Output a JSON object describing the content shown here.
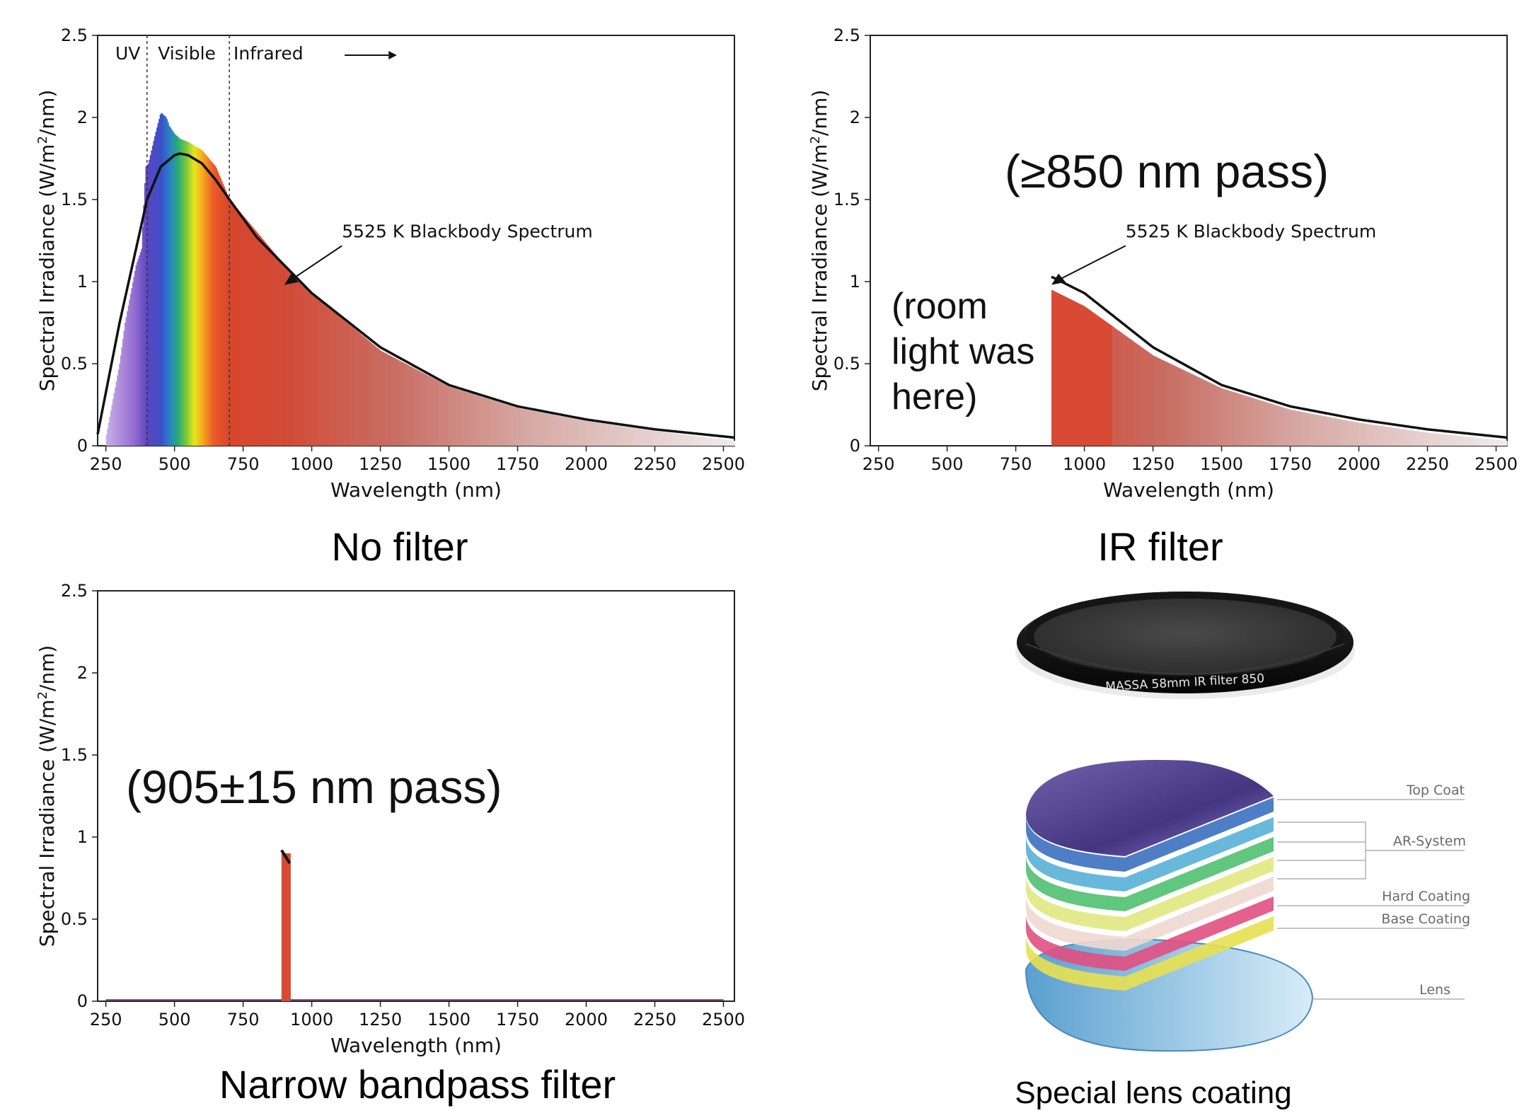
{
  "chart_data": [
    {
      "id": "no_filter",
      "type": "area",
      "xlabel": "Wavelength (nm)",
      "ylabel": "Spectral Irradiance (W/m2/nm)",
      "xlim": [
        220,
        2540
      ],
      "ylim": [
        0,
        2.5
      ],
      "xticks": [
        250,
        500,
        750,
        1000,
        1250,
        1500,
        1750,
        2000,
        2250,
        2500
      ],
      "yticks": [
        0,
        0.5,
        1,
        1.5,
        2,
        2.5
      ],
      "region_labels": [
        "UV",
        "Visible",
        "Infrared"
      ],
      "region_boundaries": [
        400,
        700
      ],
      "blackbody_label": "5525 K Blackbody Spectrum",
      "caption": "No filter",
      "series": [
        {
          "name": "5525 K Blackbody Spectrum",
          "x": [
            220,
            300,
            400,
            450,
            500,
            520,
            550,
            600,
            650,
            700,
            800,
            1000,
            1250,
            1500,
            1750,
            2000,
            2250,
            2540
          ],
          "y": [
            0.07,
            0.75,
            1.5,
            1.7,
            1.77,
            1.78,
            1.77,
            1.72,
            1.62,
            1.5,
            1.27,
            0.93,
            0.6,
            0.37,
            0.24,
            0.16,
            0.1,
            0.05
          ]
        },
        {
          "x": [
            250,
            300,
            320,
            360,
            380,
            395,
            405,
            430,
            450,
            470,
            480,
            500,
            520,
            550,
            600,
            650,
            700,
            750,
            800,
            900,
            1000,
            1250,
            1500,
            1750,
            2000,
            2250,
            2540
          ],
          "y": [
            0.05,
            0.5,
            0.75,
            1.1,
            1.2,
            1.7,
            1.72,
            1.9,
            2.03,
            2.0,
            1.95,
            1.9,
            1.87,
            1.85,
            1.8,
            1.7,
            1.5,
            1.4,
            1.3,
            1.1,
            0.93,
            0.58,
            0.36,
            0.23,
            0.15,
            0.09,
            0.03
          ]
        }
      ]
    },
    {
      "id": "ir_filter",
      "type": "area",
      "xlabel": "Wavelength (nm)",
      "ylabel": "Spectral Irradiance (W/m2/nm)",
      "xlim": [
        220,
        2540
      ],
      "ylim": [
        0,
        2.5
      ],
      "xticks": [
        250,
        500,
        750,
        1000,
        1250,
        1500,
        1750,
        2000,
        2250,
        2500
      ],
      "yticks": [
        0,
        0.5,
        1,
        1.5,
        2,
        2.5
      ],
      "annotation": "(≥850 nm pass)",
      "side_note": [
        "(room",
        "light was",
        "here)"
      ],
      "blackbody_label": "5525 K Blackbody Spectrum",
      "caption": "IR filter",
      "series": [
        {
          "name": "5525 K Blackbody Spectrum",
          "x": [
            880,
            1000,
            1250,
            1500,
            1750,
            2000,
            2250,
            2540
          ],
          "y": [
            1.03,
            0.93,
            0.6,
            0.37,
            0.24,
            0.16,
            0.1,
            0.05
          ]
        },
        {
          "x": [
            880,
            1000,
            1250,
            1500,
            1750,
            2000,
            2250,
            2540
          ],
          "y": [
            0.95,
            0.85,
            0.55,
            0.35,
            0.22,
            0.14,
            0.08,
            0.03
          ]
        }
      ]
    },
    {
      "id": "narrow_bandpass",
      "type": "area",
      "xlabel": "Wavelength (nm)",
      "ylabel": "Spectral Irradiance (W/m2/nm)",
      "xlim": [
        220,
        2540
      ],
      "ylim": [
        0,
        2.5
      ],
      "xticks": [
        250,
        500,
        750,
        1000,
        1250,
        1500,
        1750,
        2000,
        2250,
        2500
      ],
      "yticks": [
        0,
        0.5,
        1,
        1.5,
        2,
        2.5
      ],
      "annotation": "(905±15 nm pass)",
      "caption": "Narrow bandpass filter",
      "series": [
        {
          "x": [
            890,
            920
          ],
          "y": [
            0.9,
            0.9
          ]
        }
      ]
    }
  ],
  "filter_photo": {
    "ring_text": "MASSA  58mm    IR  filter   850"
  },
  "lens_diagram": {
    "layers": [
      "Top Coat",
      "AR-System",
      "Hard Coating",
      "Base Coating",
      "Lens"
    ],
    "caption": "Special lens coating"
  },
  "colors": {
    "ir_red": "#d84a34",
    "curve": "#111111"
  }
}
